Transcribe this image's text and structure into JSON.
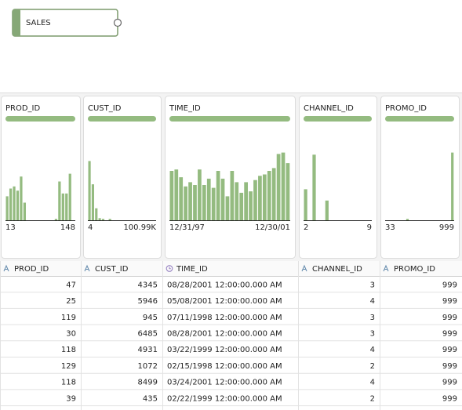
{
  "node": {
    "label": "SALES"
  },
  "profiles": [
    {
      "name": "PROD_ID",
      "min": "13",
      "max": "148",
      "bars": [
        34,
        45,
        48,
        42,
        62,
        25,
        0,
        0,
        0,
        0,
        0,
        0,
        0,
        0,
        2,
        55,
        38,
        38,
        66,
        0
      ]
    },
    {
      "name": "CUST_ID",
      "min": "4",
      "max": "100.99K",
      "bars": [
        84,
        51,
        17,
        3,
        2,
        0,
        2,
        0,
        0,
        0,
        0,
        0,
        0,
        0,
        0,
        0,
        0,
        0,
        0,
        0
      ]
    },
    {
      "name": "TIME_ID",
      "min": "12/31/97",
      "max": "12/30/01",
      "bars": [
        70,
        72,
        61,
        48,
        54,
        50,
        72,
        50,
        59,
        46,
        70,
        59,
        34,
        70,
        54,
        39,
        54,
        41,
        57,
        63,
        65,
        70,
        74,
        94,
        96,
        81
      ]
    },
    {
      "name": "CHANNEL_ID",
      "min": "2",
      "max": "9",
      "bars": [
        44,
        0,
        93,
        0,
        0,
        28,
        0,
        0,
        0,
        0,
        0,
        0,
        0,
        0,
        0,
        0
      ]
    },
    {
      "name": "PROMO_ID",
      "min": "33",
      "max": "999",
      "bars": [
        0,
        0,
        0,
        0,
        0,
        0,
        2,
        0,
        0,
        0,
        0,
        0,
        0,
        0,
        0,
        0,
        0,
        0,
        0,
        96
      ]
    }
  ],
  "table": {
    "columns": [
      "PROD_ID",
      "CUST_ID",
      "TIME_ID",
      "CHANNEL_ID",
      "PROMO_ID"
    ],
    "rows": [
      [
        47,
        4345,
        "08/28/2001 12:00:00.000 AM",
        3,
        999
      ],
      [
        25,
        5946,
        "05/08/2001 12:00:00.000 AM",
        4,
        999
      ],
      [
        119,
        945,
        "07/11/1998 12:00:00.000 AM",
        3,
        999
      ],
      [
        30,
        6485,
        "08/28/2001 12:00:00.000 AM",
        3,
        999
      ],
      [
        118,
        4931,
        "03/22/1999 12:00:00.000 AM",
        4,
        999
      ],
      [
        129,
        1072,
        "02/15/1998 12:00:00.000 AM",
        2,
        999
      ],
      [
        118,
        8499,
        "03/24/2001 12:00:00.000 AM",
        4,
        999
      ],
      [
        39,
        435,
        "02/22/1999 12:00:00.000 AM",
        2,
        999
      ]
    ]
  }
}
